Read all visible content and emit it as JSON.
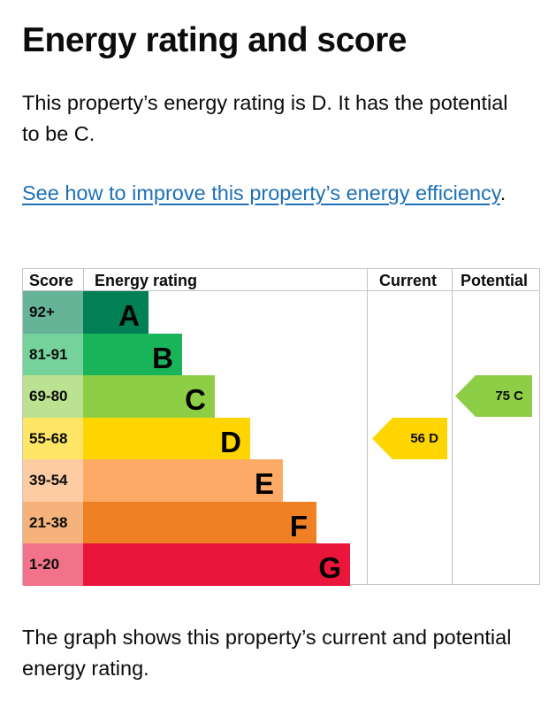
{
  "title": "Energy rating and score",
  "intro": "This property’s energy rating is D. It has the potential to be C.",
  "improve_link": "See how to improve this property’s energy efficiency",
  "improve_link_suffix": ".",
  "chart_data": {
    "type": "table",
    "headers": {
      "score": "Score",
      "rating": "Energy rating",
      "current": "Current",
      "potential": "Potential"
    },
    "bands": [
      {
        "score": "92+",
        "letter": "A",
        "bar_color": "#008054",
        "score_bg": "#66b398"
      },
      {
        "score": "81-91",
        "letter": "B",
        "bar_color": "#19b459",
        "score_bg": "#75d29b"
      },
      {
        "score": "69-80",
        "letter": "C",
        "bar_color": "#8dce46",
        "score_bg": "#bbe290"
      },
      {
        "score": "55-68",
        "letter": "D",
        "bar_color": "#ffd500",
        "score_bg": "#ffe666"
      },
      {
        "score": "39-54",
        "letter": "E",
        "bar_color": "#fcaa65",
        "score_bg": "#fdcca3"
      },
      {
        "score": "21-38",
        "letter": "F",
        "bar_color": "#ef8023",
        "score_bg": "#f5b37b"
      },
      {
        "score": "1-20",
        "letter": "G",
        "bar_color": "#e9153b",
        "score_bg": "#f27389"
      }
    ],
    "current": {
      "value": 56,
      "band": "D",
      "label": "56 D",
      "color": "#ffd500"
    },
    "potential": {
      "value": 75,
      "band": "C",
      "label": "75 C",
      "color": "#8dce46"
    }
  },
  "caption": "The graph shows this property’s current and potential energy rating."
}
